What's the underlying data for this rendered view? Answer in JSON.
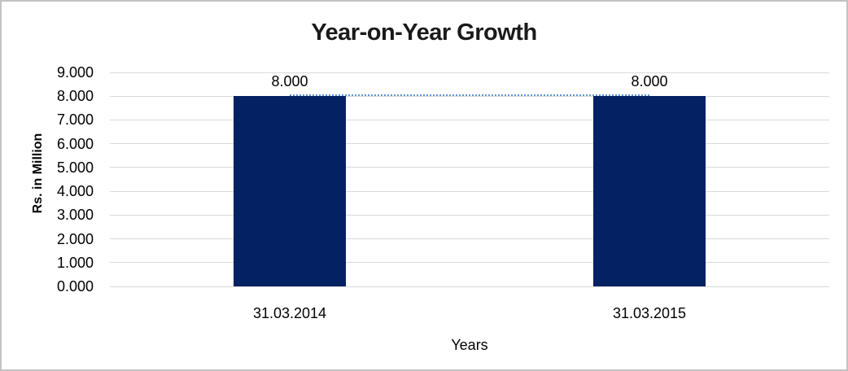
{
  "window": {
    "background": "#ffffff",
    "border_color": "#c2c2c2"
  },
  "chart_data": {
    "type": "bar",
    "title": "Year-on-Year Growth",
    "xlabel": "Years",
    "ylabel": "Rs. in Million",
    "categories": [
      "31.03.2014",
      "31.03.2015"
    ],
    "series": [
      {
        "name": "bars",
        "type": "bar",
        "values": [
          8.0,
          8.0
        ],
        "data_labels": [
          "8.000",
          "8.000"
        ],
        "color": "#032163"
      },
      {
        "name": "dotted-connector",
        "type": "line",
        "values": [
          8.0,
          8.0
        ],
        "style": "dotted",
        "color": "#5e94cf"
      }
    ],
    "ylim": [
      0,
      9
    ],
    "ytick_labels": [
      "0.000",
      "1.000",
      "2.000",
      "3.000",
      "4.000",
      "5.000",
      "6.000",
      "7.000",
      "8.000",
      "9.000"
    ],
    "grid": "horizontal",
    "gridline_color": "#d9d9d9",
    "legend": "none"
  }
}
